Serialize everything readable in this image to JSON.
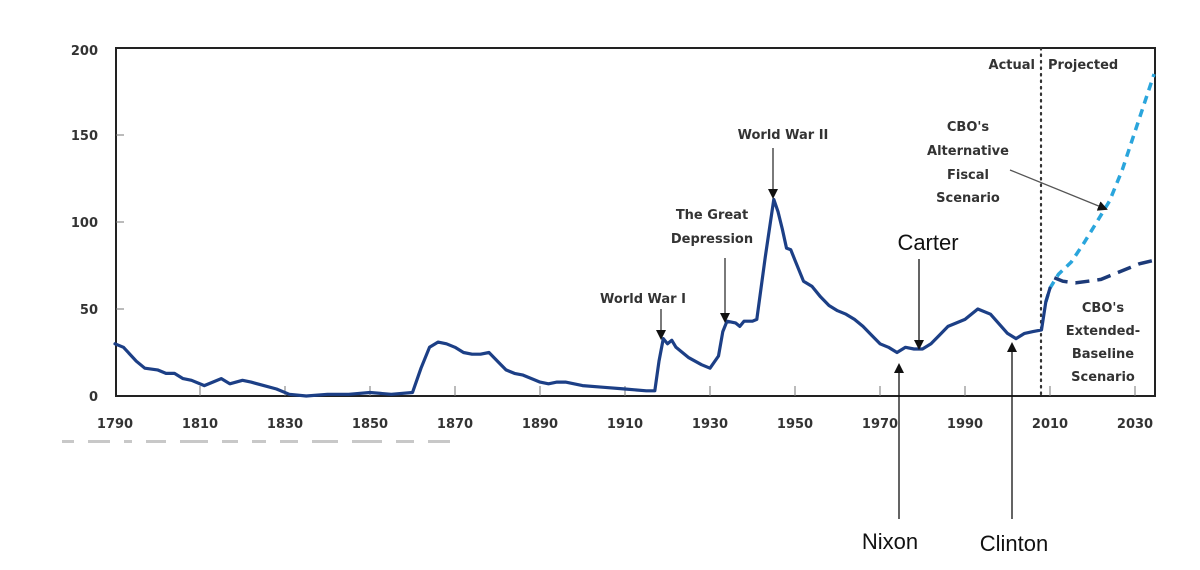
{
  "chart_data": {
    "type": "line",
    "title": "",
    "xlabel": "",
    "ylabel": "",
    "xlim": [
      1790,
      2035
    ],
    "ylim": [
      0,
      200
    ],
    "grid": false,
    "x_ticks": [
      1790,
      1810,
      1830,
      1850,
      1870,
      1890,
      1910,
      1930,
      1950,
      1970,
      1990,
      2010,
      2030
    ],
    "y_ticks": [
      0,
      50,
      100,
      150,
      200
    ],
    "divider": {
      "year": 2009,
      "left_label": "Actual",
      "right_label": "Projected"
    },
    "series": [
      {
        "name": "Actual",
        "style": "solid",
        "color": "#1c3f86",
        "points": [
          [
            1790,
            30
          ],
          [
            1792,
            28
          ],
          [
            1795,
            20
          ],
          [
            1797,
            16
          ],
          [
            1800,
            15
          ],
          [
            1802,
            13
          ],
          [
            1804,
            13
          ],
          [
            1806,
            10
          ],
          [
            1808,
            9
          ],
          [
            1811,
            6
          ],
          [
            1813,
            8
          ],
          [
            1815,
            10
          ],
          [
            1817,
            7
          ],
          [
            1820,
            9
          ],
          [
            1822,
            8
          ],
          [
            1825,
            6
          ],
          [
            1828,
            4
          ],
          [
            1831,
            1
          ],
          [
            1835,
            0
          ],
          [
            1840,
            1
          ],
          [
            1845,
            1
          ],
          [
            1850,
            2
          ],
          [
            1855,
            1
          ],
          [
            1860,
            2
          ],
          [
            1862,
            16
          ],
          [
            1864,
            28
          ],
          [
            1866,
            31
          ],
          [
            1868,
            30
          ],
          [
            1870,
            28
          ],
          [
            1872,
            25
          ],
          [
            1874,
            24
          ],
          [
            1876,
            24
          ],
          [
            1878,
            25
          ],
          [
            1880,
            20
          ],
          [
            1882,
            15
          ],
          [
            1884,
            13
          ],
          [
            1886,
            12
          ],
          [
            1890,
            8
          ],
          [
            1892,
            7
          ],
          [
            1894,
            8
          ],
          [
            1896,
            8
          ],
          [
            1898,
            7
          ],
          [
            1900,
            6
          ],
          [
            1905,
            5
          ],
          [
            1910,
            4
          ],
          [
            1915,
            3
          ],
          [
            1917,
            3
          ],
          [
            1918,
            20
          ],
          [
            1919,
            33
          ],
          [
            1920,
            30
          ],
          [
            1921,
            32
          ],
          [
            1922,
            28
          ],
          [
            1925,
            22
          ],
          [
            1928,
            18
          ],
          [
            1930,
            16
          ],
          [
            1932,
            23
          ],
          [
            1933,
            37
          ],
          [
            1934,
            43
          ],
          [
            1936,
            42
          ],
          [
            1937,
            40
          ],
          [
            1938,
            43
          ],
          [
            1940,
            43
          ],
          [
            1941,
            44
          ],
          [
            1943,
            80
          ],
          [
            1945,
            113
          ],
          [
            1946,
            106
          ],
          [
            1947,
            96
          ],
          [
            1948,
            85
          ],
          [
            1949,
            84
          ],
          [
            1950,
            78
          ],
          [
            1952,
            66
          ],
          [
            1954,
            63
          ],
          [
            1956,
            57
          ],
          [
            1958,
            52
          ],
          [
            1960,
            49
          ],
          [
            1962,
            47
          ],
          [
            1964,
            44
          ],
          [
            1966,
            40
          ],
          [
            1968,
            35
          ],
          [
            1970,
            30
          ],
          [
            1972,
            28
          ],
          [
            1974,
            25
          ],
          [
            1976,
            28
          ],
          [
            1978,
            27
          ],
          [
            1980,
            27
          ],
          [
            1982,
            30
          ],
          [
            1984,
            35
          ],
          [
            1986,
            40
          ],
          [
            1988,
            42
          ],
          [
            1990,
            44
          ],
          [
            1993,
            50
          ],
          [
            1996,
            47
          ],
          [
            2000,
            36
          ],
          [
            2002,
            33
          ],
          [
            2004,
            36
          ],
          [
            2006,
            37
          ],
          [
            2008,
            38
          ],
          [
            2009,
            54
          ],
          [
            2010,
            62
          ]
        ]
      },
      {
        "name": "CBO's Alternative Fiscal Scenario",
        "style": "dotted",
        "color": "#2aa5dc",
        "points": [
          [
            2009,
            54
          ],
          [
            2010,
            62
          ],
          [
            2012,
            70
          ],
          [
            2015,
            77
          ],
          [
            2018,
            88
          ],
          [
            2021,
            100
          ],
          [
            2024,
            112
          ],
          [
            2027,
            130
          ],
          [
            2030,
            152
          ],
          [
            2034.5,
            185
          ]
        ]
      },
      {
        "name": "CBO's Extended-Baseline Scenario",
        "style": "dashed",
        "color": "#1c3a78",
        "points": [
          [
            2011,
            68
          ],
          [
            2013,
            66
          ],
          [
            2016,
            65
          ],
          [
            2019,
            66
          ],
          [
            2022,
            67
          ],
          [
            2025,
            70
          ],
          [
            2028,
            73
          ],
          [
            2031,
            76
          ],
          [
            2034.5,
            78
          ]
        ]
      }
    ],
    "annotations": [
      {
        "text": "World War I",
        "year": 1919,
        "value": 33
      },
      {
        "text": "The Great Depression",
        "lines": [
          "The Great",
          "Depression"
        ],
        "year": 1933,
        "value": 43
      },
      {
        "text": "World War II",
        "year": 1945,
        "value": 113
      },
      {
        "text": "Carter",
        "year": 1979,
        "value": 27
      },
      {
        "text": "Nixon",
        "year": 1974,
        "value": 25
      },
      {
        "text": "Clinton",
        "year": 2001,
        "value": 33
      },
      {
        "text": "CBO's Alternative Fiscal Scenario",
        "lines": [
          "CBO's",
          "Alternative",
          "Fiscal",
          "Scenario"
        ],
        "year": 2023,
        "value": 108
      },
      {
        "text": "CBO's Extended-Baseline Scenario",
        "lines": [
          "CBO's",
          "Extended-",
          "Baseline",
          "Scenario"
        ]
      }
    ]
  },
  "labels": {
    "y_ticks": [
      "0",
      "50",
      "100",
      "150",
      "200"
    ],
    "x_ticks": [
      "1790",
      "1810",
      "1830",
      "1850",
      "1870",
      "1890",
      "1910",
      "1930",
      "1950",
      "1970",
      "1990",
      "2010",
      "2030"
    ],
    "actual": "Actual",
    "projected": "Projected",
    "ww1": "World War I",
    "depression_1": "The Great",
    "depression_2": "Depression",
    "ww2": "World War II",
    "carter": "Carter",
    "nixon": "Nixon",
    "clinton": "Clinton",
    "alt_1": "CBO's",
    "alt_2": "Alternative",
    "alt_3": "Fiscal",
    "alt_4": "Scenario",
    "base_1": "CBO's",
    "base_2": "Extended-",
    "base_3": "Baseline",
    "base_4": "Scenario"
  }
}
